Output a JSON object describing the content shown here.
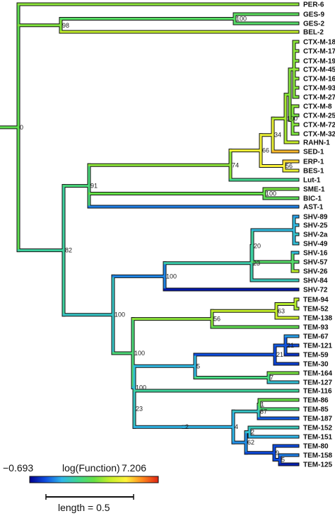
{
  "colors": {
    "outline": "#111111",
    "gradient": [
      "#00008f",
      "#0f4fe0",
      "#2fb7ea",
      "#40d690",
      "#66e045",
      "#c7ef2a",
      "#fff33b",
      "#ff8a1e",
      "#e02414"
    ]
  },
  "leaves": [
    {
      "label": "PER-6",
      "value": 0.55
    },
    {
      "label": "GES-9",
      "value": 0.46
    },
    {
      "label": "GES-2",
      "value": 0.44
    },
    {
      "label": "BEL-2",
      "value": 0.62
    },
    {
      "label": "CTX-M-18",
      "value": 0.55
    },
    {
      "label": "CTX-M-17",
      "value": 0.55
    },
    {
      "label": "CTX-M-19",
      "value": 0.54
    },
    {
      "label": "CTX-M-45",
      "value": 0.56
    },
    {
      "label": "CTX-M-16",
      "value": 0.55
    },
    {
      "label": "CTX-M-93",
      "value": 0.54
    },
    {
      "label": "CTX-M-27",
      "value": 0.53
    },
    {
      "label": "CTX-M-8",
      "value": 0.55
    },
    {
      "label": "CTX-M-25",
      "value": 0.52
    },
    {
      "label": "CTX-M-72",
      "value": 0.54
    },
    {
      "label": "CTX-M-32",
      "value": 0.53
    },
    {
      "label": "RAHN-1",
      "value": 0.63
    },
    {
      "label": "SED-1",
      "value": 0.82
    },
    {
      "label": "ERP-1",
      "value": 0.78
    },
    {
      "label": "BES-1",
      "value": 0.7
    },
    {
      "label": "Lut-1",
      "value": 0.38
    },
    {
      "label": "SME-1",
      "value": 0.52
    },
    {
      "label": "BIC-1",
      "value": 0.47
    },
    {
      "label": "AST-1",
      "value": 0.18
    },
    {
      "label": "SHV-89",
      "value": 0.22
    },
    {
      "label": "SHV-25",
      "value": 0.26
    },
    {
      "label": "SHV-2a",
      "value": 0.3
    },
    {
      "label": "SHV-49",
      "value": 0.28
    },
    {
      "label": "SHV-16",
      "value": 0.27
    },
    {
      "label": "SHV-57",
      "value": 0.44
    },
    {
      "label": "SHV-26",
      "value": 0.62
    },
    {
      "label": "SHV-84",
      "value": 0.32
    },
    {
      "label": "SHV-72",
      "value": 0.04
    },
    {
      "label": "TEM-94",
      "value": 0.62
    },
    {
      "label": "TEM-52",
      "value": 0.58
    },
    {
      "label": "TEM-138",
      "value": 0.64
    },
    {
      "label": "TEM-93",
      "value": 0.48
    },
    {
      "label": "TEM-67",
      "value": 0.22
    },
    {
      "label": "TEM-121",
      "value": 0.12
    },
    {
      "label": "TEM-59",
      "value": 0.08
    },
    {
      "label": "TEM-30",
      "value": 0.1
    },
    {
      "label": "TEM-164",
      "value": 0.52
    },
    {
      "label": "TEM-127",
      "value": 0.28
    },
    {
      "label": "TEM-116",
      "value": 0.36
    },
    {
      "label": "TEM-86",
      "value": 0.5
    },
    {
      "label": "TEM-85",
      "value": 0.42
    },
    {
      "label": "TEM-187",
      "value": 0.14
    },
    {
      "label": "TEM-152",
      "value": 0.32
    },
    {
      "label": "TEM-151",
      "value": 0.25
    },
    {
      "label": "TEM-80",
      "value": 0.12
    },
    {
      "label": "TEM-158",
      "value": 0.18
    },
    {
      "label": "TEM-125",
      "value": 0.05
    }
  ],
  "branch_labels": [
    {
      "text": "0",
      "node": "root"
    },
    {
      "text": "98",
      "node": "ges_bel"
    },
    {
      "text": "100",
      "node": "ges"
    },
    {
      "text": "82",
      "node": "main"
    },
    {
      "text": "91",
      "node": "nonclassA"
    },
    {
      "text": "74",
      "node": "ctx_sed_lut"
    },
    {
      "text": "66",
      "node": "ctx_sed"
    },
    {
      "text": "34",
      "node": "ctx_rahn_sed"
    },
    {
      "text": "56",
      "node": "erp_bes"
    },
    {
      "text": "100",
      "node": "ctx_rahn"
    },
    {
      "text": "100",
      "node": "sme_bic"
    },
    {
      "text": "100",
      "node": "shv_tem"
    },
    {
      "text": "100",
      "node": "shv"
    },
    {
      "text": "23",
      "node": "shv_sub"
    },
    {
      "text": "20",
      "node": "shv_a"
    },
    {
      "text": "100",
      "node": "tem"
    },
    {
      "text": "56",
      "node": "tem_a"
    },
    {
      "text": "63",
      "node": "tem_94_52"
    },
    {
      "text": "100",
      "node": "tem_b"
    },
    {
      "text": "5",
      "node": "tem_c"
    },
    {
      "text": "21",
      "node": "tem_c1"
    },
    {
      "text": "21",
      "node": "tem_67_121"
    },
    {
      "text": "7",
      "node": "tem_164_127"
    },
    {
      "text": "23",
      "node": "tem_d"
    },
    {
      "text": "2",
      "node": "tem_e"
    },
    {
      "text": "4",
      "node": "tem_e1"
    },
    {
      "text": "1",
      "node": "tem_86_85"
    },
    {
      "text": "87",
      "node": "tem_e2"
    },
    {
      "text": "62",
      "node": "tem_e3"
    },
    {
      "text": "2",
      "node": "tem_152_151"
    },
    {
      "text": "9",
      "node": "tem_80_158"
    },
    {
      "text": "5",
      "node": "tem_158_125"
    }
  ],
  "legend": {
    "min": "−0.693",
    "max": "7.206",
    "title": "log(Function)",
    "length_label": "length = 0.5"
  }
}
